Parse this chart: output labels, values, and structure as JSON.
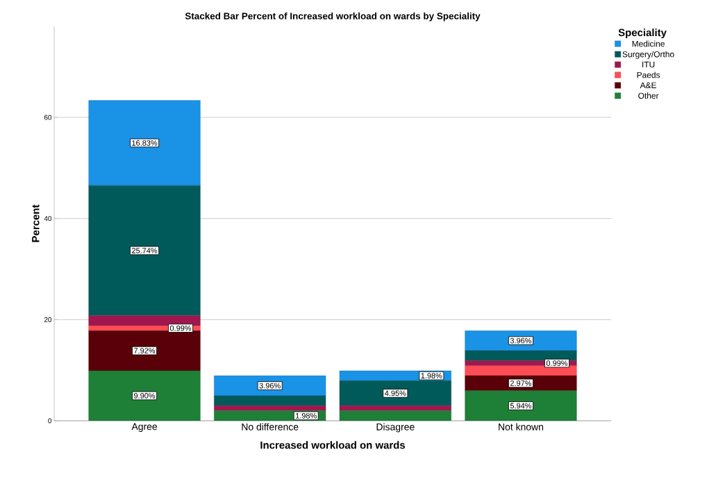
{
  "chart_data": {
    "type": "bar",
    "stacked": true,
    "title": "Stacked Bar Percent of Increased workload on wards by Speciality",
    "xlabel": "Increased workload on wards",
    "ylabel": "Percent",
    "legend_title": "Speciality",
    "legend": "top right",
    "grid": "y",
    "categories": [
      "Agree",
      "No difference",
      "Disagree",
      "Not known"
    ],
    "ylim": [
      0,
      78
    ],
    "yticks": [
      0,
      20,
      40,
      60
    ],
    "series": [
      {
        "name": "Other",
        "color": "#1e8037",
        "values": [
          9.9,
          1.98,
          1.98,
          5.94
        ],
        "value_labels": [
          "9.90%",
          "1.98%",
          null,
          "5.94%"
        ]
      },
      {
        "name": "A&E",
        "color": "#5a0008",
        "values": [
          7.92,
          0,
          0,
          2.97
        ],
        "value_labels": [
          "7.92%",
          null,
          null,
          "2.97%"
        ]
      },
      {
        "name": "Paeds",
        "color": "#ff4d55",
        "values": [
          0.99,
          0,
          0,
          1.98
        ],
        "value_labels": [
          "0.99%",
          null,
          null,
          null
        ]
      },
      {
        "name": "ITU",
        "color": "#a0174f",
        "values": [
          1.98,
          0.99,
          0.99,
          0.99
        ],
        "value_labels": [
          null,
          null,
          null,
          "0.99%"
        ]
      },
      {
        "name": "Surgery/Ortho",
        "color": "#005a5a",
        "values": [
          25.74,
          1.98,
          4.95,
          1.98
        ],
        "value_labels": [
          "25.74%",
          null,
          "4.95%",
          null
        ]
      },
      {
        "name": "Medicine",
        "color": "#1a92e6",
        "values": [
          16.83,
          3.96,
          1.98,
          3.96
        ],
        "value_labels": [
          "16.83%",
          "3.96%",
          "1.98%",
          "3.96%"
        ]
      }
    ]
  }
}
